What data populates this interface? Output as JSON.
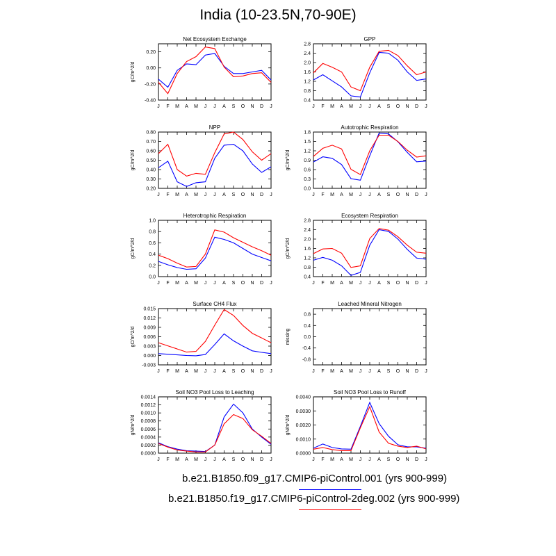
{
  "page_title": "India (10-23.5N,70-90E)",
  "legend": [
    {
      "label": "b.e21.B1850.f09_g17.CMIP6-piControl.001 (yrs 900-999)",
      "color": "#0000ff"
    },
    {
      "label": "b.e21.B1850.f19_g17.CMIP6-piControl-2deg.002 (yrs 900-999)",
      "color": "#ff0000"
    }
  ],
  "chart_data": [
    {
      "type": "line",
      "title": "Net Ecosystem Exchange",
      "ylabel": "gC/m^2/d",
      "x": [
        "J",
        "F",
        "M",
        "A",
        "M",
        "J",
        "J",
        "A",
        "S",
        "O",
        "N",
        "D",
        "J"
      ],
      "ylim": [
        -0.4,
        0.3
      ],
      "yticks": [
        "-0.40",
        "-0.20",
        "0.00",
        "0.20"
      ],
      "ytick_values": [
        -0.4,
        -0.2,
        0,
        0.2
      ],
      "series": [
        {
          "color": "#0000ff",
          "values": [
            -0.14,
            -0.24,
            -0.03,
            0.05,
            0.04,
            0.16,
            0.18,
            0.02,
            -0.07,
            -0.07,
            -0.05,
            -0.03,
            -0.15
          ]
        },
        {
          "color": "#ff0000",
          "values": [
            -0.18,
            -0.32,
            -0.07,
            0.08,
            0.14,
            0.26,
            0.24,
            0.01,
            -0.11,
            -0.1,
            -0.07,
            -0.06,
            -0.18
          ]
        }
      ]
    },
    {
      "type": "line",
      "title": "GPP",
      "ylabel": "",
      "x": [
        "J",
        "F",
        "M",
        "A",
        "M",
        "J",
        "J",
        "A",
        "S",
        "O",
        "N",
        "D",
        "J"
      ],
      "ylim": [
        0.4,
        2.8
      ],
      "yticks": [
        "0.4",
        "0.8",
        "1.2",
        "1.6",
        "2.0",
        "2.4",
        "2.8"
      ],
      "ytick_values": [
        0.4,
        0.8,
        1.2,
        1.6,
        2.0,
        2.4,
        2.8
      ],
      "series": [
        {
          "color": "#0000ff",
          "values": [
            1.26,
            1.48,
            1.22,
            0.96,
            0.58,
            0.53,
            1.56,
            2.43,
            2.4,
            2.1,
            1.6,
            1.24,
            1.3
          ]
        },
        {
          "color": "#ff0000",
          "values": [
            1.56,
            1.96,
            1.8,
            1.6,
            0.96,
            0.8,
            1.8,
            2.48,
            2.52,
            2.3,
            1.86,
            1.48,
            1.6
          ]
        }
      ]
    },
    {
      "type": "line",
      "title": "NPP",
      "ylabel": "gC/m^2/d",
      "x": [
        "J",
        "F",
        "M",
        "A",
        "M",
        "J",
        "J",
        "A",
        "S",
        "O",
        "N",
        "D",
        "J"
      ],
      "ylim": [
        0.2,
        0.8
      ],
      "yticks": [
        "0.20",
        "0.30",
        "0.40",
        "0.50",
        "0.60",
        "0.70",
        "0.80"
      ],
      "ytick_values": [
        0.2,
        0.3,
        0.4,
        0.5,
        0.6,
        0.7,
        0.8
      ],
      "series": [
        {
          "color": "#0000ff",
          "values": [
            0.42,
            0.49,
            0.27,
            0.22,
            0.26,
            0.27,
            0.52,
            0.66,
            0.67,
            0.6,
            0.46,
            0.37,
            0.43
          ]
        },
        {
          "color": "#ff0000",
          "values": [
            0.57,
            0.67,
            0.4,
            0.33,
            0.36,
            0.35,
            0.58,
            0.78,
            0.8,
            0.72,
            0.59,
            0.5,
            0.57
          ]
        }
      ]
    },
    {
      "type": "line",
      "title": "Autotrophic Respiration",
      "ylabel": "gC/m^2/d",
      "x": [
        "J",
        "F",
        "M",
        "A",
        "M",
        "J",
        "J",
        "A",
        "S",
        "O",
        "N",
        "D",
        "J"
      ],
      "ylim": [
        0.0,
        1.8
      ],
      "yticks": [
        "0.0",
        "0.3",
        "0.6",
        "0.9",
        "1.2",
        "1.5",
        "1.8"
      ],
      "ytick_values": [
        0,
        0.3,
        0.6,
        0.9,
        1.2,
        1.5,
        1.8
      ],
      "series": [
        {
          "color": "#0000ff",
          "values": [
            0.84,
            1.01,
            0.96,
            0.76,
            0.31,
            0.26,
            1.04,
            1.77,
            1.74,
            1.49,
            1.15,
            0.85,
            0.87
          ]
        },
        {
          "color": "#ff0000",
          "values": [
            1.02,
            1.28,
            1.38,
            1.26,
            0.61,
            0.44,
            1.2,
            1.7,
            1.7,
            1.5,
            1.22,
            1.0,
            1.04
          ]
        }
      ]
    },
    {
      "type": "line",
      "title": "Heterotrophic Respiration",
      "ylabel": "gC/m^2/d",
      "x": [
        "J",
        "F",
        "M",
        "A",
        "M",
        "J",
        "J",
        "A",
        "S",
        "O",
        "N",
        "D",
        "J"
      ],
      "ylim": [
        0.0,
        1.0
      ],
      "yticks": [
        "0.0",
        "0.2",
        "0.4",
        "0.6",
        "0.8",
        "1.0"
      ],
      "ytick_values": [
        0,
        0.2,
        0.4,
        0.6,
        0.8,
        1.0
      ],
      "series": [
        {
          "color": "#0000ff",
          "values": [
            0.27,
            0.21,
            0.16,
            0.13,
            0.14,
            0.33,
            0.7,
            0.66,
            0.6,
            0.5,
            0.4,
            0.34,
            0.28
          ]
        },
        {
          "color": "#ff0000",
          "values": [
            0.38,
            0.32,
            0.24,
            0.17,
            0.18,
            0.4,
            0.83,
            0.79,
            0.69,
            0.61,
            0.53,
            0.46,
            0.38
          ]
        }
      ]
    },
    {
      "type": "line",
      "title": "Ecosystem Respiration",
      "ylabel": "gC/m^2/d",
      "x": [
        "J",
        "F",
        "M",
        "A",
        "M",
        "J",
        "J",
        "A",
        "S",
        "O",
        "N",
        "D",
        "J"
      ],
      "ylim": [
        0.4,
        2.8
      ],
      "yticks": [
        "0.4",
        "0.8",
        "1.2",
        "1.6",
        "2.0",
        "2.4",
        "2.8"
      ],
      "ytick_values": [
        0.4,
        0.8,
        1.2,
        1.6,
        2.0,
        2.4,
        2.8
      ],
      "series": [
        {
          "color": "#0000ff",
          "values": [
            1.1,
            1.22,
            1.1,
            0.86,
            0.45,
            0.58,
            1.74,
            2.4,
            2.33,
            2.0,
            1.56,
            1.19,
            1.14
          ]
        },
        {
          "color": "#ff0000",
          "values": [
            1.38,
            1.58,
            1.6,
            1.4,
            0.79,
            0.86,
            2.02,
            2.45,
            2.38,
            2.1,
            1.74,
            1.44,
            1.4
          ]
        }
      ]
    },
    {
      "type": "line",
      "title": "Surface CH4 Flux",
      "ylabel": "gC/m^2/d",
      "x": [
        "J",
        "F",
        "M",
        "A",
        "M",
        "J",
        "J",
        "A",
        "S",
        "O",
        "N",
        "D",
        "J"
      ],
      "ylim": [
        -0.003,
        0.015
      ],
      "yticks": [
        "-0.003",
        "0.000",
        "0.003",
        "0.006",
        "0.009",
        "0.012",
        "0.015"
      ],
      "ytick_values": [
        -0.003,
        0,
        0.003,
        0.006,
        0.009,
        0.012,
        0.015
      ],
      "series": [
        {
          "color": "#0000ff",
          "values": [
            0.0006,
            0.0004,
            0.0002,
            0.0,
            -0.0001,
            0.0003,
            0.0035,
            0.0069,
            0.0047,
            0.003,
            0.0015,
            0.001,
            0.0006
          ]
        },
        {
          "color": "#ff0000",
          "values": [
            0.0041,
            0.0031,
            0.0021,
            0.0011,
            0.0013,
            0.0045,
            0.0097,
            0.0147,
            0.0128,
            0.0096,
            0.0071,
            0.0056,
            0.0041
          ]
        }
      ]
    },
    {
      "type": "line",
      "title": "Leached Mineral Nitrogen",
      "ylabel": "missing",
      "x": [
        "J",
        "F",
        "M",
        "A",
        "M",
        "J",
        "J",
        "A",
        "S",
        "O",
        "N",
        "D",
        "J"
      ],
      "ylim": [
        -1.0,
        1.0
      ],
      "yticks": [
        "-0.8",
        "-0.4",
        "0.0",
        "0.4",
        "0.8"
      ],
      "ytick_values": [
        -0.8,
        -0.4,
        0,
        0.4,
        0.8
      ],
      "series": []
    },
    {
      "type": "line",
      "title": "Soil NO3 Pool Loss to Leaching",
      "ylabel": "gN/m^2/d",
      "x": [
        "J",
        "F",
        "M",
        "A",
        "M",
        "J",
        "J",
        "A",
        "S",
        "O",
        "N",
        "D",
        "J"
      ],
      "ylim": [
        0.0,
        0.0014
      ],
      "yticks": [
        "0.0000",
        "0.0002",
        "0.0004",
        "0.0006",
        "0.0008",
        "0.0010",
        "0.0012",
        "0.0014"
      ],
      "ytick_values": [
        0,
        0.0002,
        0.0004,
        0.0006,
        0.0008,
        0.001,
        0.0012,
        0.0014
      ],
      "series": [
        {
          "color": "#0000ff",
          "values": [
            0.00026,
            0.00016,
            0.0001,
            6e-05,
            5e-05,
            4e-05,
            0.0002,
            0.0009,
            0.00122,
            0.001,
            0.0006,
            0.0004,
            0.00022
          ]
        },
        {
          "color": "#ff0000",
          "values": [
            0.00024,
            0.00015,
            8e-05,
            5e-05,
            3e-05,
            3e-05,
            0.0002,
            0.00073,
            0.00096,
            0.00086,
            0.00058,
            0.00042,
            0.00024
          ]
        }
      ]
    },
    {
      "type": "line",
      "title": "Soil NO3 Pool Loss to Runoff",
      "ylabel": "gN/m^2/d",
      "x": [
        "J",
        "F",
        "M",
        "A",
        "M",
        "J",
        "J",
        "A",
        "S",
        "O",
        "N",
        "D",
        "J"
      ],
      "ylim": [
        0.0,
        0.004
      ],
      "yticks": [
        "0.0000",
        "0.0010",
        "0.0020",
        "0.0030",
        "0.0040"
      ],
      "ytick_values": [
        0,
        0.001,
        0.002,
        0.003,
        0.004
      ],
      "series": [
        {
          "color": "#0000ff",
          "values": [
            0.00035,
            0.00065,
            0.0004,
            0.0003,
            0.00028,
            0.0019,
            0.0036,
            0.0021,
            0.0012,
            0.0006,
            0.00045,
            0.00045,
            0.00035
          ]
        },
        {
          "color": "#ff0000",
          "values": [
            0.00028,
            0.0004,
            0.00025,
            0.00018,
            0.00018,
            0.0018,
            0.0033,
            0.0015,
            0.0007,
            0.0005,
            0.0004,
            0.0005,
            0.0003
          ]
        }
      ]
    }
  ]
}
